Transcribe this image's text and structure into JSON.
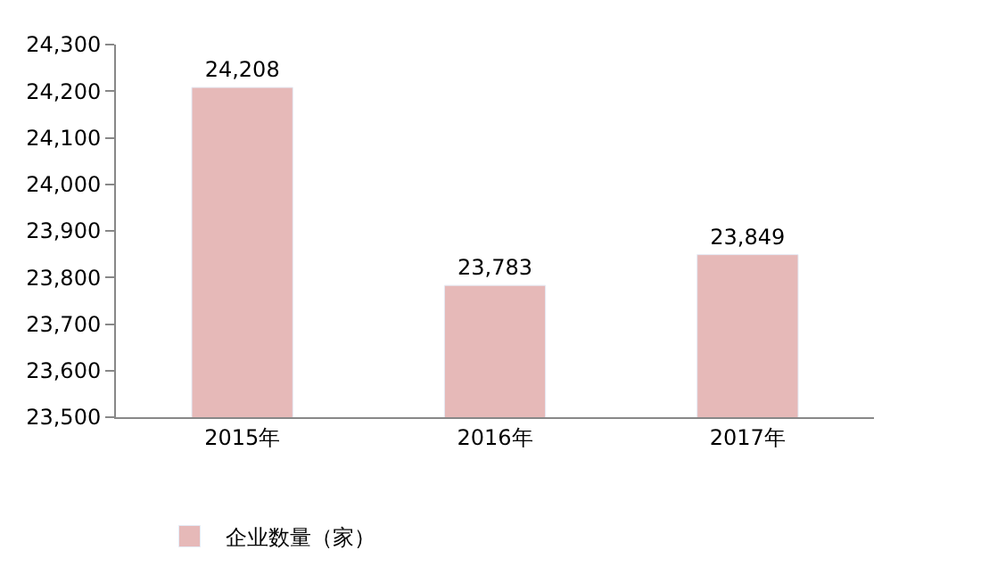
{
  "chart_data": {
    "type": "bar",
    "categories": [
      "2015年",
      "2016年",
      "2017年"
    ],
    "series": [
      {
        "name": "企业数量（家）",
        "color": "#e6b9b8",
        "values": [
          24208,
          23783,
          23849
        ]
      }
    ],
    "ylim": [
      23500,
      24300
    ],
    "yticks": [
      {
        "value": 23500,
        "label": "23,500"
      },
      {
        "value": 23600,
        "label": "23,600"
      },
      {
        "value": 23700,
        "label": "23,700"
      },
      {
        "value": 23800,
        "label": "23,800"
      },
      {
        "value": 23900,
        "label": "23,900"
      },
      {
        "value": 24000,
        "label": "24,000"
      },
      {
        "value": 24100,
        "label": "24,100"
      },
      {
        "value": 24200,
        "label": "24,200"
      },
      {
        "value": 24300,
        "label": "24,300"
      }
    ],
    "value_labels": [
      "24,208",
      "23,783",
      "23,849"
    ],
    "legend": "bottom"
  }
}
